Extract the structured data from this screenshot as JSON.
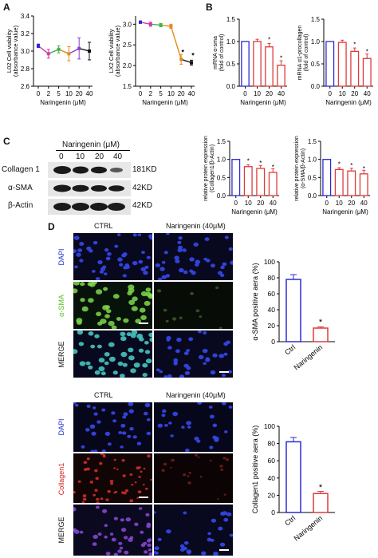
{
  "panels": {
    "a": "A",
    "b": "B",
    "c": "C",
    "d": "D"
  },
  "colors": {
    "ctrl": "#2b2bd6",
    "dose_red": "#e03a3a",
    "dapi": "#2233cc",
    "sma_green": "#8be04a",
    "collagen_red": "#e02828"
  },
  "panel_a": {
    "xlabel": "Naringenin (μM)",
    "charts": [
      {
        "ylabel_line1": "L02 Cell viability",
        "ylabel_line2": "(absorbance value)",
        "yticks": [
          "2.6",
          "2.8",
          "3.0",
          "3.2",
          "3.4"
        ],
        "xticks": [
          "0",
          "2",
          "5",
          "10",
          "20",
          "40"
        ],
        "sig": []
      },
      {
        "ylabel_line1": "LX2 Cell viability",
        "ylabel_line2": "(absorbance value)",
        "yticks": [
          "1.5",
          "2.0",
          "2.5",
          "3.0"
        ],
        "xticks": [
          "0",
          "2",
          "5",
          "10",
          "20",
          "40"
        ],
        "sig": [
          "*",
          "*"
        ]
      }
    ]
  },
  "panel_b": {
    "xlabel": "Naringenin (μM)",
    "xlabel_cut": "Naringenin (μM)",
    "charts": [
      {
        "ylabel_line1": "mRNA α-sma",
        "ylabel_line2": "(fold of control)",
        "yticks": [
          "0.0",
          "0.5",
          "1.0",
          "1.5"
        ],
        "xticks": [
          "0",
          "10",
          "20",
          "40"
        ],
        "sig": [
          "*",
          "*"
        ]
      },
      {
        "ylabel_line1": "mRNA α1-procollagen",
        "ylabel_line2": "(fold of control)",
        "yticks": [
          "0.0",
          "0.5",
          "1.0",
          "1.5"
        ],
        "xticks": [
          "0",
          "10",
          "20",
          "40"
        ],
        "sig": [
          "*",
          "*"
        ]
      }
    ]
  },
  "panel_c": {
    "header": "Naringenin (μM)",
    "doses": [
      "0",
      "10",
      "20",
      "40"
    ],
    "rows": [
      {
        "label": "Collagen 1",
        "kd": "181KD"
      },
      {
        "label": "α-SMA",
        "kd": "42KD"
      },
      {
        "label": "β-Actin",
        "kd": "42KD"
      }
    ],
    "charts": [
      {
        "ylabel_line1": "relative protein expression",
        "ylabel_line2": "(Collagen1/β-Actin)",
        "yticks": [
          "0.0",
          "0.5",
          "1.0",
          "1.5"
        ],
        "xticks": [
          "0",
          "10",
          "20",
          "40"
        ],
        "sig": [
          "*",
          "*",
          "*"
        ],
        "xlabel": "Naringenin (μM)"
      },
      {
        "ylabel_line1": "relative protein expression",
        "ylabel_line2": "(α-SMA/β-Actin)",
        "yticks": [
          "0.0",
          "0.5",
          "1.0",
          "1.5"
        ],
        "xticks": [
          "0",
          "10",
          "20",
          "40"
        ],
        "sig": [
          "*",
          "*",
          "*"
        ],
        "xlabel": "Naringenin (μM)"
      }
    ]
  },
  "panel_d": {
    "top": {
      "col_ctrl": "CTRL",
      "col_nar": "Naringenin (40μM)",
      "rows": [
        "DAPI",
        "α-SMA",
        "MERGE"
      ],
      "chart": {
        "ylabel": "α-SMA positive aera (%)",
        "yticks": [
          "0",
          "20",
          "40",
          "60",
          "80",
          "100"
        ],
        "categories": [
          "Ctrl",
          "Naringenin"
        ],
        "sig": "*"
      }
    },
    "bottom": {
      "col_ctrl": "CTRL",
      "col_nar": "Naringenin (40μM)",
      "rows": [
        "DAPI",
        "Collagen1",
        "MERGE"
      ],
      "chart": {
        "ylabel": "Collagen1 positive aera (%)",
        "yticks": [
          "0",
          "20",
          "40",
          "60",
          "80",
          "100"
        ],
        "categories": [
          "Ctrl",
          "Naringenin"
        ],
        "sig": "*"
      }
    }
  },
  "chart_data": [
    {
      "type": "line",
      "x": [
        "0",
        "2",
        "5",
        "10",
        "20",
        "40"
      ],
      "series": [
        {
          "values": [
            3.06,
            2.97,
            3.02,
            2.97,
            3.03,
            3.0
          ]
        }
      ],
      "ylim": [
        2.6,
        3.4
      ],
      "xlabel": "Naringenin (μM)",
      "ylabel": "L02 Cell viability (absorbance value)"
    },
    {
      "type": "line",
      "x": [
        "0",
        "2",
        "5",
        "10",
        "20",
        "40"
      ],
      "series": [
        {
          "values": [
            3.05,
            3.0,
            2.98,
            2.95,
            2.15,
            2.07
          ]
        }
      ],
      "ylim": [
        1.5,
        3.2
      ],
      "xlabel": "Naringenin (μM)",
      "ylabel": "LX2 Cell viability (absorbance value)"
    },
    {
      "type": "bar",
      "categories": [
        "0",
        "10",
        "20",
        "40"
      ],
      "values": [
        1.0,
        1.0,
        0.88,
        0.47
      ],
      "ylim": [
        0,
        1.5
      ],
      "xlabel": "Naringenin (μM)",
      "ylabel": "mRNA α-sma (fold of control)"
    },
    {
      "type": "bar",
      "categories": [
        "0",
        "10",
        "20",
        "40"
      ],
      "values": [
        1.0,
        0.98,
        0.78,
        0.62
      ],
      "ylim": [
        0,
        1.5
      ],
      "xlabel": "Naringenin (μM)",
      "ylabel": "mRNA α1-procollagen (fold of control)"
    },
    {
      "type": "bar",
      "categories": [
        "0",
        "10",
        "20",
        "40"
      ],
      "values": [
        1.0,
        0.8,
        0.75,
        0.64
      ],
      "ylim": [
        0,
        1.5
      ],
      "xlabel": "Naringenin (μM)",
      "ylabel": "relative protein expression (Collagen1/β-Actin)"
    },
    {
      "type": "bar",
      "categories": [
        "0",
        "10",
        "20",
        "40"
      ],
      "values": [
        1.0,
        0.72,
        0.68,
        0.6
      ],
      "ylim": [
        0,
        1.5
      ],
      "xlabel": "Naringenin (μM)",
      "ylabel": "relative protein expression (α-SMA/β-Actin)"
    },
    {
      "type": "bar",
      "categories": [
        "Ctrl",
        "Naringenin"
      ],
      "values": [
        78,
        17
      ],
      "ylim": [
        0,
        100
      ],
      "ylabel": "α-SMA positive aera (%)"
    },
    {
      "type": "bar",
      "categories": [
        "Ctrl",
        "Naringenin"
      ],
      "values": [
        82,
        22
      ],
      "ylim": [
        0,
        100
      ],
      "ylabel": "Collagen1 positive aera (%)"
    }
  ]
}
